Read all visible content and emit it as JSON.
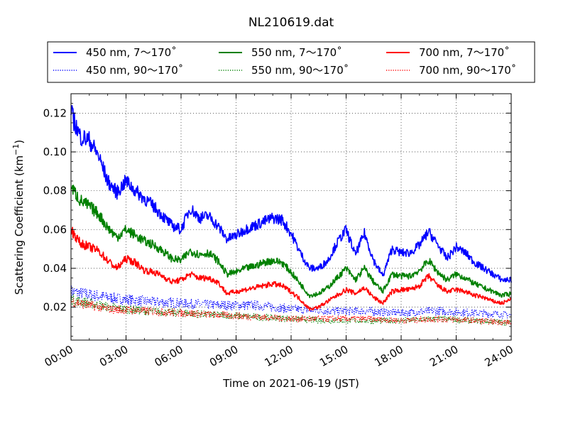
{
  "chart_data": {
    "type": "line",
    "title": "NL210619.dat",
    "xlabel": "Time on 2021-06-19 (JST)",
    "ylabel_main": "Scattering Coefficient (km",
    "ylabel_sup": "−1",
    "ylabel_close": ")",
    "xlim": [
      "2021-06-19 00:00",
      "2021-06-20 00:00"
    ],
    "ylim": [
      0.003,
      0.13
    ],
    "x_ticks": [
      "00:00",
      "03:00",
      "06:00",
      "09:00",
      "12:00",
      "15:00",
      "18:00",
      "21:00",
      "24:00"
    ],
    "y_ticks": [
      "0.02",
      "0.04",
      "0.06",
      "0.08",
      "0.10",
      "0.12"
    ],
    "grid": true,
    "legend_position": "top, outside plot, 3 columns",
    "series": [
      {
        "name": "450 nm, 7～170˚",
        "color": "#0000ff",
        "style": "solid",
        "points": [
          [
            "00:00",
            0.12
          ],
          [
            "00:30",
            0.108
          ],
          [
            "01:00",
            0.106
          ],
          [
            "01:30",
            0.098
          ],
          [
            "02:00",
            0.085
          ],
          [
            "02:30",
            0.079
          ],
          [
            "03:00",
            0.085
          ],
          [
            "03:30",
            0.08
          ],
          [
            "04:00",
            0.076
          ],
          [
            "04:30",
            0.072
          ],
          [
            "05:00",
            0.067
          ],
          [
            "05:30",
            0.062
          ],
          [
            "06:00",
            0.06
          ],
          [
            "06:30",
            0.071
          ],
          [
            "07:00",
            0.066
          ],
          [
            "07:30",
            0.067
          ],
          [
            "08:00",
            0.062
          ],
          [
            "08:30",
            0.055
          ],
          [
            "09:00",
            0.057
          ],
          [
            "09:30",
            0.06
          ],
          [
            "10:00",
            0.062
          ],
          [
            "10:30",
            0.064
          ],
          [
            "11:00",
            0.066
          ],
          [
            "11:30",
            0.065
          ],
          [
            "12:00",
            0.058
          ],
          [
            "12:30",
            0.048
          ],
          [
            "13:00",
            0.04
          ],
          [
            "13:30",
            0.04
          ],
          [
            "14:00",
            0.044
          ],
          [
            "14:30",
            0.053
          ],
          [
            "15:00",
            0.06
          ],
          [
            "15:30",
            0.047
          ],
          [
            "16:00",
            0.058
          ],
          [
            "16:30",
            0.044
          ],
          [
            "17:00",
            0.036
          ],
          [
            "17:30",
            0.05
          ],
          [
            "18:00",
            0.048
          ],
          [
            "18:30",
            0.048
          ],
          [
            "19:00",
            0.052
          ],
          [
            "19:30",
            0.059
          ],
          [
            "20:00",
            0.052
          ],
          [
            "20:30",
            0.045
          ],
          [
            "21:00",
            0.051
          ],
          [
            "21:30",
            0.048
          ],
          [
            "22:00",
            0.043
          ],
          [
            "22:30",
            0.04
          ],
          [
            "23:00",
            0.037
          ],
          [
            "23:30",
            0.034
          ],
          [
            "24:00",
            0.034
          ]
        ]
      },
      {
        "name": "550 nm, 7～170˚",
        "color": "#008000",
        "style": "solid",
        "points": [
          [
            "00:00",
            0.082
          ],
          [
            "00:30",
            0.075
          ],
          [
            "01:00",
            0.072
          ],
          [
            "01:30",
            0.068
          ],
          [
            "02:00",
            0.061
          ],
          [
            "02:30",
            0.056
          ],
          [
            "03:00",
            0.06
          ],
          [
            "03:30",
            0.057
          ],
          [
            "04:00",
            0.054
          ],
          [
            "04:30",
            0.052
          ],
          [
            "05:00",
            0.049
          ],
          [
            "05:30",
            0.045
          ],
          [
            "06:00",
            0.044
          ],
          [
            "06:30",
            0.049
          ],
          [
            "07:00",
            0.047
          ],
          [
            "07:30",
            0.048
          ],
          [
            "08:00",
            0.044
          ],
          [
            "08:30",
            0.037
          ],
          [
            "09:00",
            0.038
          ],
          [
            "09:30",
            0.04
          ],
          [
            "10:00",
            0.041
          ],
          [
            "10:30",
            0.043
          ],
          [
            "11:00",
            0.044
          ],
          [
            "11:30",
            0.043
          ],
          [
            "12:00",
            0.038
          ],
          [
            "12:30",
            0.032
          ],
          [
            "13:00",
            0.026
          ],
          [
            "13:30",
            0.027
          ],
          [
            "14:00",
            0.03
          ],
          [
            "14:30",
            0.035
          ],
          [
            "15:00",
            0.04
          ],
          [
            "15:30",
            0.034
          ],
          [
            "16:00",
            0.04
          ],
          [
            "16:30",
            0.033
          ],
          [
            "17:00",
            0.028
          ],
          [
            "17:30",
            0.037
          ],
          [
            "18:00",
            0.036
          ],
          [
            "18:30",
            0.036
          ],
          [
            "19:00",
            0.039
          ],
          [
            "19:30",
            0.044
          ],
          [
            "20:00",
            0.038
          ],
          [
            "20:30",
            0.034
          ],
          [
            "21:00",
            0.037
          ],
          [
            "21:30",
            0.035
          ],
          [
            "22:00",
            0.032
          ],
          [
            "22:30",
            0.03
          ],
          [
            "23:00",
            0.028
          ],
          [
            "23:30",
            0.026
          ],
          [
            "24:00",
            0.027
          ]
        ]
      },
      {
        "name": "700 nm, 7～170˚",
        "color": "#ff0000",
        "style": "solid",
        "points": [
          [
            "00:00",
            0.06
          ],
          [
            "00:30",
            0.053
          ],
          [
            "01:00",
            0.051
          ],
          [
            "01:30",
            0.049
          ],
          [
            "02:00",
            0.044
          ],
          [
            "02:30",
            0.04
          ],
          [
            "03:00",
            0.045
          ],
          [
            "03:30",
            0.043
          ],
          [
            "04:00",
            0.039
          ],
          [
            "04:30",
            0.038
          ],
          [
            "05:00",
            0.036
          ],
          [
            "05:30",
            0.033
          ],
          [
            "06:00",
            0.034
          ],
          [
            "06:30",
            0.037
          ],
          [
            "07:00",
            0.035
          ],
          [
            "07:30",
            0.035
          ],
          [
            "08:00",
            0.033
          ],
          [
            "08:30",
            0.027
          ],
          [
            "09:00",
            0.028
          ],
          [
            "09:30",
            0.029
          ],
          [
            "10:00",
            0.03
          ],
          [
            "10:30",
            0.031
          ],
          [
            "11:00",
            0.032
          ],
          [
            "11:30",
            0.031
          ],
          [
            "12:00",
            0.028
          ],
          [
            "12:30",
            0.024
          ],
          [
            "13:00",
            0.019
          ],
          [
            "13:30",
            0.02
          ],
          [
            "14:00",
            0.023
          ],
          [
            "14:30",
            0.026
          ],
          [
            "15:00",
            0.029
          ],
          [
            "15:30",
            0.027
          ],
          [
            "16:00",
            0.03
          ],
          [
            "16:30",
            0.025
          ],
          [
            "17:00",
            0.022
          ],
          [
            "17:30",
            0.028
          ],
          [
            "18:00",
            0.029
          ],
          [
            "18:30",
            0.029
          ],
          [
            "19:00",
            0.031
          ],
          [
            "19:30",
            0.036
          ],
          [
            "20:00",
            0.031
          ],
          [
            "20:30",
            0.028
          ],
          [
            "21:00",
            0.029
          ],
          [
            "21:30",
            0.028
          ],
          [
            "22:00",
            0.026
          ],
          [
            "22:30",
            0.025
          ],
          [
            "23:00",
            0.023
          ],
          [
            "23:30",
            0.022
          ],
          [
            "24:00",
            0.024
          ]
        ]
      },
      {
        "name": "450 nm, 90～170˚",
        "color": "#0000ff",
        "style": "dotted",
        "points": [
          [
            "00:00",
            0.028
          ],
          [
            "02:00",
            0.025
          ],
          [
            "04:00",
            0.023
          ],
          [
            "06:00",
            0.022
          ],
          [
            "08:00",
            0.021
          ],
          [
            "10:00",
            0.021
          ],
          [
            "12:00",
            0.019
          ],
          [
            "14:00",
            0.018
          ],
          [
            "16:00",
            0.018
          ],
          [
            "18:00",
            0.017
          ],
          [
            "20:00",
            0.018
          ],
          [
            "22:00",
            0.017
          ],
          [
            "24:00",
            0.016
          ]
        ]
      },
      {
        "name": "550 nm, 90～170˚",
        "color": "#008000",
        "style": "dotted",
        "points": [
          [
            "00:00",
            0.024
          ],
          [
            "02:00",
            0.02
          ],
          [
            "04:00",
            0.018
          ],
          [
            "06:00",
            0.017
          ],
          [
            "08:00",
            0.016
          ],
          [
            "10:00",
            0.015
          ],
          [
            "12:00",
            0.014
          ],
          [
            "14:00",
            0.013
          ],
          [
            "16:00",
            0.013
          ],
          [
            "18:00",
            0.013
          ],
          [
            "20:00",
            0.014
          ],
          [
            "22:00",
            0.013
          ],
          [
            "24:00",
            0.012
          ]
        ]
      },
      {
        "name": "700 nm, 90～170˚",
        "color": "#ff0000",
        "style": "dotted",
        "points": [
          [
            "00:00",
            0.023
          ],
          [
            "02:00",
            0.019
          ],
          [
            "04:00",
            0.018
          ],
          [
            "06:00",
            0.017
          ],
          [
            "08:00",
            0.016
          ],
          [
            "10:00",
            0.015
          ],
          [
            "12:00",
            0.014
          ],
          [
            "14:00",
            0.014
          ],
          [
            "16:00",
            0.014
          ],
          [
            "18:00",
            0.013
          ],
          [
            "20:00",
            0.014
          ],
          [
            "22:00",
            0.013
          ],
          [
            "24:00",
            0.012
          ]
        ]
      }
    ]
  }
}
